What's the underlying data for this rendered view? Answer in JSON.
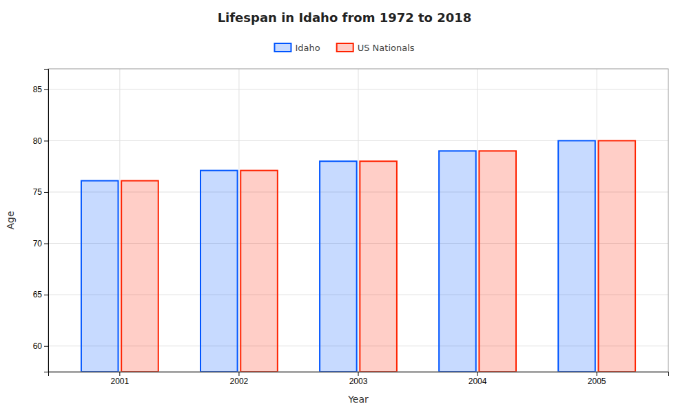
{
  "chart_data": {
    "type": "bar",
    "title": "Lifespan in Idaho from 1972 to 2018",
    "x_label": "Year",
    "y_label": "Age",
    "categories": [
      "2001",
      "2002",
      "2003",
      "2004",
      "2005"
    ],
    "series": [
      {
        "name": "Idaho",
        "color": "#0055ff",
        "values": [
          76.1,
          77.1,
          78.0,
          79.0,
          80.0
        ]
      },
      {
        "name": "US Nationals",
        "color": "#ff2200",
        "values": [
          76.1,
          77.1,
          78.0,
          79.0,
          80.0
        ]
      }
    ],
    "ylim": [
      57.5,
      87
    ],
    "yticks": [
      60,
      65,
      70,
      75,
      80,
      85
    ],
    "grid": true,
    "legend": "top"
  }
}
